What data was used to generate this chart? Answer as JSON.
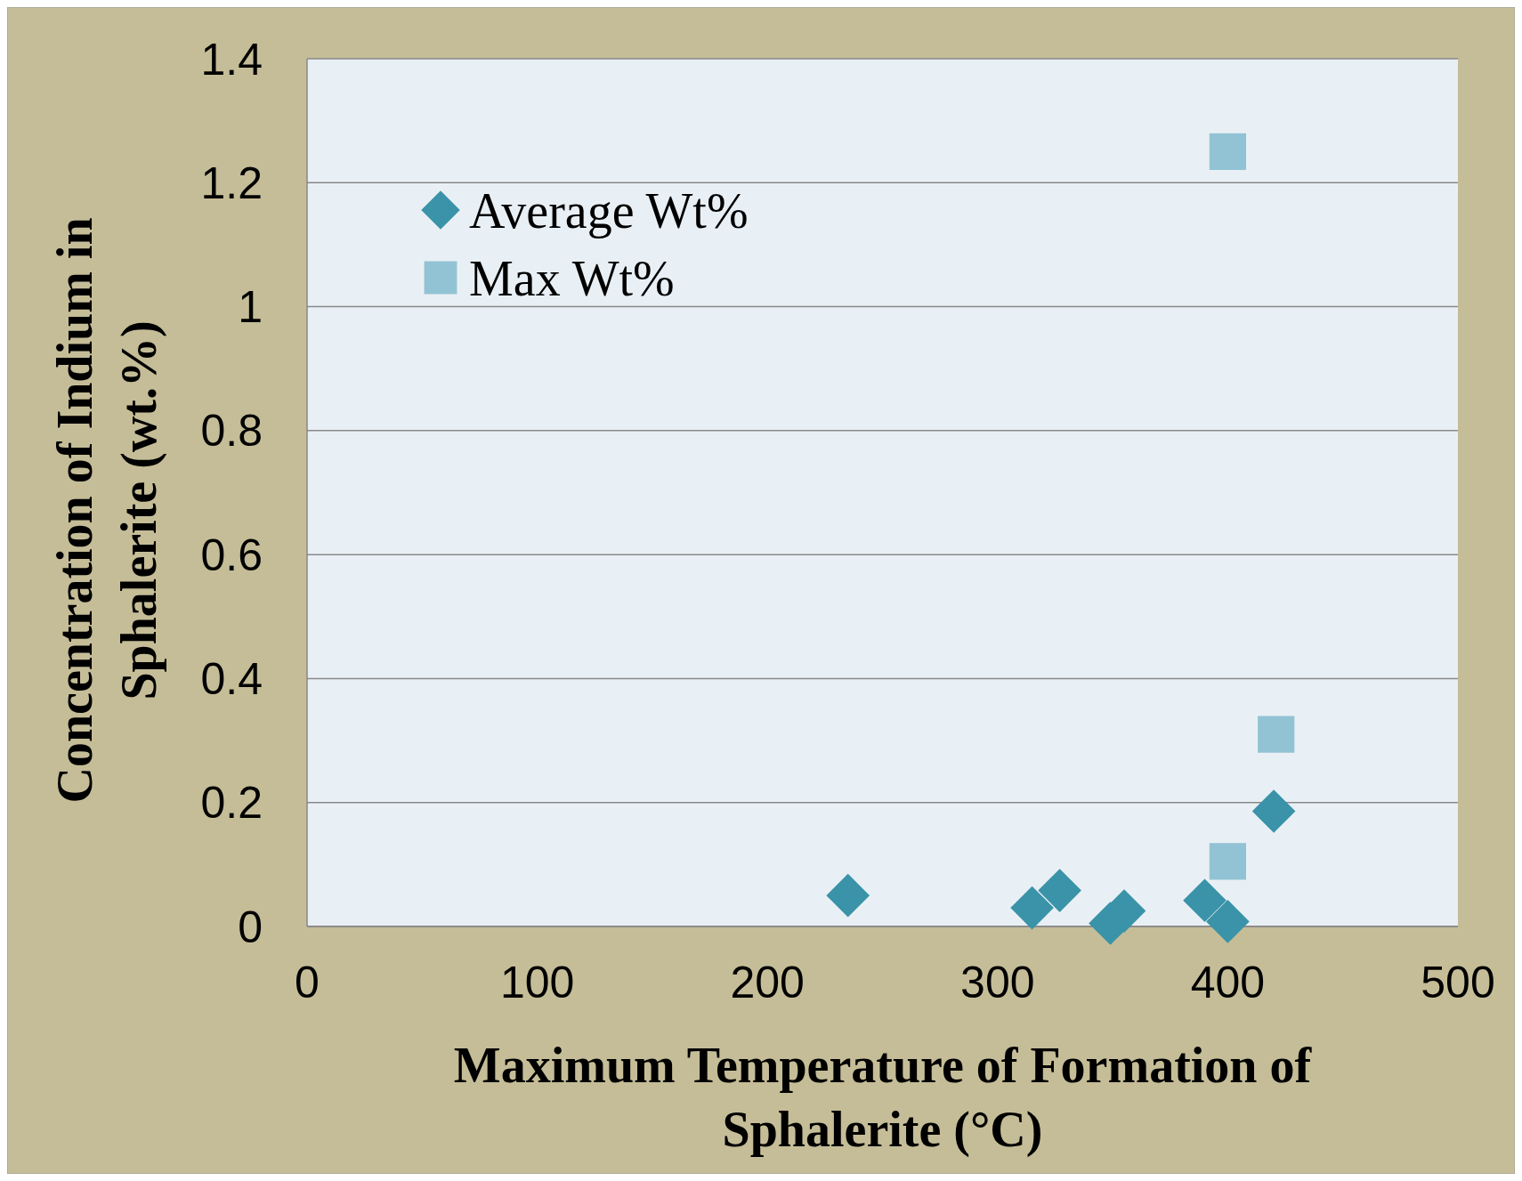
{
  "chart_data": {
    "type": "scatter",
    "xlabel": "Maximum Temperature of Formation of Sphalerite (°C)",
    "ylabel": "Concentration of Indium in Sphalerite (wt.%)",
    "xlim": [
      0,
      500
    ],
    "xticks": [
      0,
      100,
      200,
      300,
      400,
      500
    ],
    "ylim": [
      0,
      1.4
    ],
    "yticks": [
      0,
      0.2,
      0.4,
      0.6,
      0.8,
      1,
      1.2,
      1.4
    ],
    "grid": "y",
    "legend": "top left",
    "series": [
      {
        "name": "Average Wt%",
        "color": "#3a93a8",
        "marker": "diamond",
        "x": [
          235,
          315,
          327,
          349,
          355,
          390,
          400,
          420
        ],
        "values": [
          0.05,
          0.03,
          0.058,
          0.005,
          0.025,
          0.042,
          0.008,
          0.186
        ]
      },
      {
        "name": "Max Wt%",
        "color": "#92c3d4",
        "marker": "square",
        "x": [
          400,
          421,
          400
        ],
        "values": [
          1.25,
          0.31,
          0.105
        ]
      }
    ]
  }
}
